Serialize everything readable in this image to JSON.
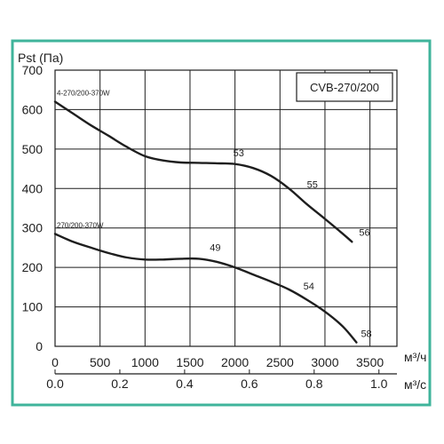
{
  "chart_data": {
    "type": "line",
    "ylabel": "Pst (Па)",
    "xlabel": "м³/ч",
    "xlabel_secondary": "м³/с",
    "model": "CVB-270/200",
    "ylim": [
      0,
      700
    ],
    "xlim": [
      0,
      3800
    ],
    "yticks": [
      0,
      100,
      200,
      300,
      400,
      500,
      600,
      700
    ],
    "xticks": [
      0,
      500,
      1000,
      1500,
      2000,
      2500,
      3000,
      3500
    ],
    "xticks_secondary": [
      {
        "label": "0.0",
        "value": 0
      },
      {
        "label": "0.2",
        "value": 720
      },
      {
        "label": "0.4",
        "value": 1440
      },
      {
        "label": "0.6",
        "value": 2160
      },
      {
        "label": "0.8",
        "value": 2880
      },
      {
        "label": "1.0",
        "value": 3600
      }
    ],
    "grid": true,
    "series": [
      {
        "name": "4-270/200-370W",
        "points": [
          [
            0,
            620
          ],
          [
            200,
            590
          ],
          [
            400,
            560
          ],
          [
            600,
            533
          ],
          [
            800,
            505
          ],
          [
            1000,
            482
          ],
          [
            1200,
            471
          ],
          [
            1400,
            466
          ],
          [
            1600,
            465
          ],
          [
            1800,
            464
          ],
          [
            2000,
            462
          ],
          [
            2200,
            452
          ],
          [
            2400,
            432
          ],
          [
            2600,
            400
          ],
          [
            2800,
            360
          ],
          [
            3000,
            323
          ],
          [
            3200,
            285
          ],
          [
            3300,
            265
          ]
        ],
        "markers": [
          {
            "label": "53",
            "x": 1960,
            "y": 468
          },
          {
            "label": "55",
            "x": 2780,
            "y": 388
          },
          {
            "label": "56",
            "x": 3360,
            "y": 267
          }
        ]
      },
      {
        "name": "270/200-370W",
        "points": [
          [
            0,
            285
          ],
          [
            200,
            265
          ],
          [
            400,
            250
          ],
          [
            600,
            236
          ],
          [
            800,
            225
          ],
          [
            1000,
            220
          ],
          [
            1200,
            220
          ],
          [
            1400,
            222
          ],
          [
            1600,
            222
          ],
          [
            1800,
            214
          ],
          [
            2000,
            200
          ],
          [
            2200,
            182
          ],
          [
            2400,
            164
          ],
          [
            2600,
            144
          ],
          [
            2800,
            118
          ],
          [
            3000,
            88
          ],
          [
            3200,
            50
          ],
          [
            3350,
            10
          ]
        ],
        "markers": [
          {
            "label": "49",
            "x": 1700,
            "y": 228
          },
          {
            "label": "54",
            "x": 2740,
            "y": 130
          },
          {
            "label": "58",
            "x": 3380,
            "y": 10
          }
        ]
      }
    ]
  }
}
